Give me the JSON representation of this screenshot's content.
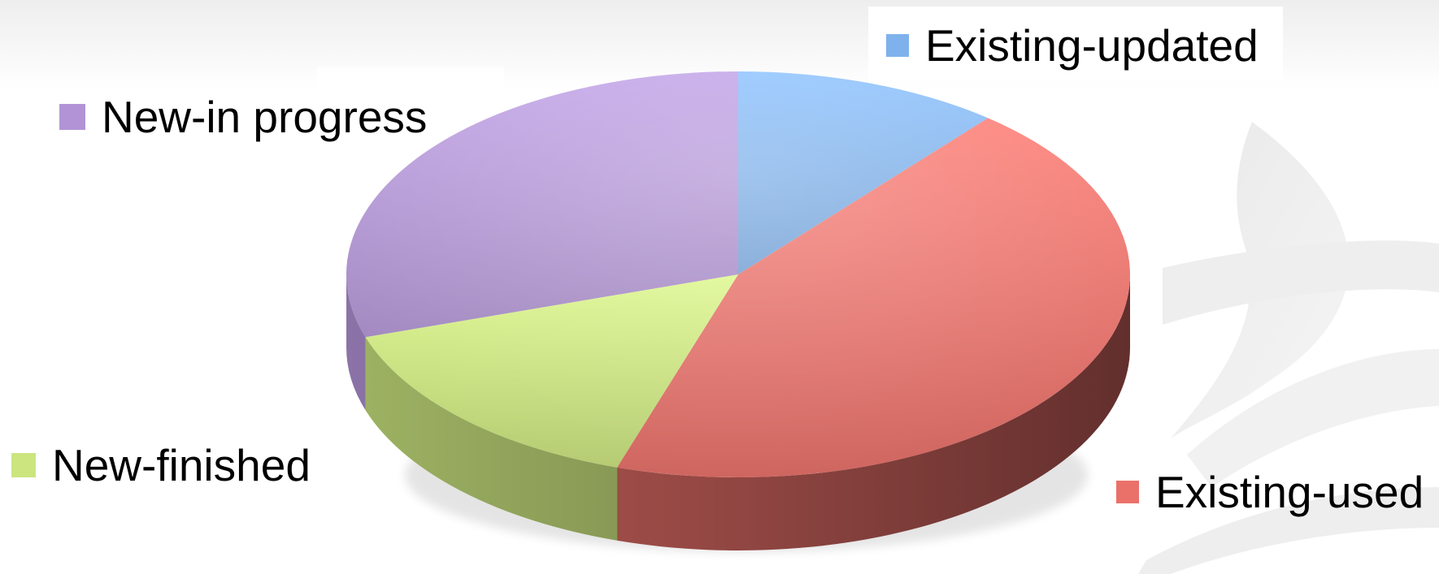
{
  "chart_data": {
    "type": "pie",
    "title": "",
    "three_d": true,
    "legend_placement": "labels around the pie",
    "slices": [
      {
        "label": "Existing-updated",
        "value": 11,
        "color": "#7fb2ec"
      },
      {
        "label": "Existing-used",
        "value": 44,
        "color": "#ea716a"
      },
      {
        "label": "New-finished",
        "value": 15,
        "color": "#cce57f"
      },
      {
        "label": "New-in progress",
        "value": 30,
        "color": "#b294d6"
      }
    ]
  }
}
